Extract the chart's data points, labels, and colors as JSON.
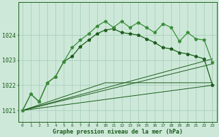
{
  "title": "Graphe pression niveau de la mer (hPa)",
  "bg_color": "#cde8d8",
  "grid_color": "#aacfbe",
  "line_color_dark": "#1a5c1a",
  "line_color_light": "#3a8c3a",
  "xlim": [
    -0.5,
    23.5
  ],
  "ylim": [
    1020.55,
    1025.3
  ],
  "yticks": [
    1021,
    1022,
    1023,
    1024
  ],
  "xtick_labels": [
    "0",
    "1",
    "2",
    "3",
    "4",
    "5",
    "6",
    "7",
    "8",
    "9",
    "10",
    "11",
    "12",
    "13",
    "14",
    "15",
    "16",
    "17",
    "18",
    "19",
    "20",
    "21",
    "22",
    "23"
  ],
  "series_jagged": [
    1021.0,
    1021.65,
    1021.35,
    1022.1,
    1022.35,
    1022.95,
    1023.5,
    1023.8,
    1024.05,
    1024.35,
    1024.55,
    1024.3,
    1024.55,
    1024.3,
    1024.5,
    1024.3,
    1024.1,
    1024.45,
    1024.3,
    1023.75,
    1024.1,
    1023.85,
    1023.8,
    1022.9
  ],
  "series_smooth": [
    1021.0,
    1021.65,
    1021.35,
    1022.1,
    1022.35,
    1022.95,
    1023.15,
    1023.55,
    1023.8,
    1024.05,
    1024.2,
    1024.25,
    1024.1,
    1024.05,
    1024.0,
    1023.85,
    1023.7,
    1023.5,
    1023.45,
    1023.3,
    1023.25,
    1023.15,
    1023.05,
    1022.0
  ],
  "fan_lines": [
    {
      "x": [
        0,
        23
      ],
      "y": [
        1021.0,
        1022.0
      ]
    },
    {
      "x": [
        0,
        23
      ],
      "y": [
        1021.0,
        1022.85
      ]
    },
    {
      "x": [
        0,
        23
      ],
      "y": [
        1021.0,
        1023.05
      ]
    },
    {
      "x": [
        0,
        10,
        23
      ],
      "y": [
        1021.0,
        1022.1,
        1022.1
      ]
    }
  ]
}
